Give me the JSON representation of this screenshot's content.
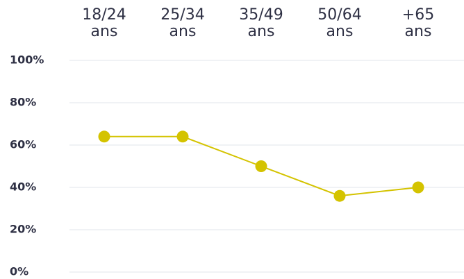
{
  "chart_data": {
    "type": "line",
    "categories": [
      [
        "18/24",
        "ans"
      ],
      [
        "25/34",
        "ans"
      ],
      [
        "35/49",
        "ans"
      ],
      [
        "50/64",
        "ans"
      ],
      [
        "+65",
        "ans"
      ]
    ],
    "series": [
      {
        "color": "#d4c300",
        "values": [
          64,
          64,
          50,
          36,
          40
        ]
      }
    ],
    "ylim": [
      0,
      100
    ],
    "yticks": [
      {
        "value": 0,
        "label": "0%"
      },
      {
        "value": 20,
        "label": "20%"
      },
      {
        "value": 40,
        "label": "40%"
      },
      {
        "value": 60,
        "label": "60%"
      },
      {
        "value": 80,
        "label": "80%"
      },
      {
        "value": 100,
        "label": "100%"
      }
    ],
    "grid": true
  }
}
